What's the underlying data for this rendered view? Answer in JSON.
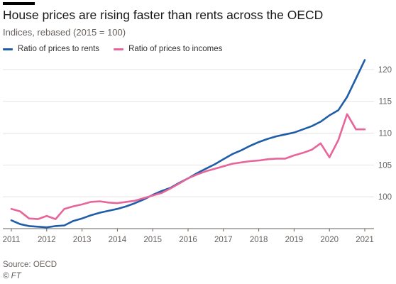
{
  "header": {
    "title": "House prices are rising faster than rents across the OECD",
    "subtitle": "Indices, rebased (2015 = 100)"
  },
  "footer": {
    "source": "Source: OECD",
    "credit": "© FT"
  },
  "colors": {
    "series_rents": "#1f5da8",
    "series_incomes": "#e8659a",
    "grid": "#e6e3df",
    "baseline": "#66605c"
  },
  "chart_data": {
    "type": "line",
    "title": "House prices are rising faster than rents across the OECD",
    "subtitle": "Indices, rebased (2015 = 100)",
    "xlabel": "",
    "ylabel": "",
    "xlim": [
      2011.0,
      2021.1
    ],
    "ylim": [
      95,
      122
    ],
    "x_ticks": [
      2011,
      2012,
      2013,
      2014,
      2015,
      2016,
      2017,
      2018,
      2019,
      2020,
      2021
    ],
    "x_tick_labels": [
      "2011",
      "2012",
      "2013",
      "2014",
      "2015",
      "2016",
      "2017",
      "2018",
      "2019",
      "2020",
      "2021"
    ],
    "y_ticks": [
      100,
      105,
      110,
      115,
      120
    ],
    "y_tick_labels": [
      "100",
      "105",
      "110",
      "115",
      "120"
    ],
    "grid": true,
    "legend_position": "top-left",
    "x": [
      2011.0,
      2011.25,
      2011.5,
      2011.75,
      2012.0,
      2012.25,
      2012.5,
      2012.75,
      2013.0,
      2013.25,
      2013.5,
      2013.75,
      2014.0,
      2014.25,
      2014.5,
      2014.75,
      2015.0,
      2015.25,
      2015.5,
      2015.75,
      2016.0,
      2016.25,
      2016.5,
      2016.75,
      2017.0,
      2017.25,
      2017.5,
      2017.75,
      2018.0,
      2018.25,
      2018.5,
      2018.75,
      2019.0,
      2019.25,
      2019.5,
      2019.75,
      2020.0,
      2020.25,
      2020.5,
      2020.75,
      2021.0
    ],
    "series": [
      {
        "name": "Ratio of prices to rents",
        "color": "#1f5da8",
        "values": [
          96.3,
          95.7,
          95.4,
          95.3,
          95.2,
          95.4,
          95.5,
          96.2,
          96.6,
          97.1,
          97.5,
          97.8,
          98.1,
          98.5,
          99.0,
          99.6,
          100.3,
          100.9,
          101.4,
          102.2,
          102.9,
          103.7,
          104.4,
          105.1,
          105.9,
          106.7,
          107.3,
          108.0,
          108.6,
          109.1,
          109.5,
          109.8,
          110.1,
          110.6,
          111.1,
          111.8,
          112.8,
          113.6,
          115.7,
          118.6,
          121.5
        ]
      },
      {
        "name": "Ratio of prices to incomes",
        "color": "#e8659a",
        "values": [
          98.1,
          97.7,
          96.6,
          96.5,
          97.0,
          96.5,
          98.1,
          98.5,
          98.8,
          99.2,
          99.3,
          99.1,
          99.0,
          99.2,
          99.4,
          99.8,
          100.2,
          100.6,
          101.3,
          102.1,
          102.9,
          103.5,
          104.0,
          104.4,
          104.8,
          105.2,
          105.4,
          105.6,
          105.7,
          105.9,
          106.0,
          106.0,
          106.5,
          106.9,
          107.4,
          108.4,
          106.2,
          108.9,
          113.0,
          110.6,
          110.6
        ]
      }
    ]
  }
}
